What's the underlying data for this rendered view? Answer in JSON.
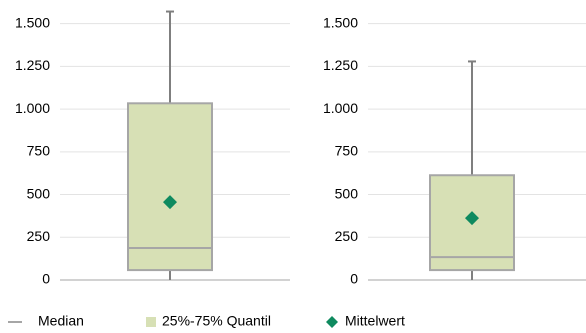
{
  "chart_data": [
    {
      "type": "box",
      "ylim": [
        0,
        1580
      ],
      "yticks": [
        0,
        250,
        500,
        750,
        {
          "value": 1000,
          "label": "1.000"
        },
        {
          "value": 1250,
          "label": "1.250"
        },
        {
          "value": 1500,
          "label": "1.500"
        }
      ],
      "grid": true,
      "min": 0,
      "q1": 58,
      "median": 187,
      "q3": 1034,
      "max": 1571,
      "mean": 456
    },
    {
      "type": "box",
      "ylim": [
        0,
        1580
      ],
      "yticks": [
        0,
        250,
        500,
        750,
        {
          "value": 1000,
          "label": "1.000"
        },
        {
          "value": 1250,
          "label": "1.250"
        },
        {
          "value": 1500,
          "label": "1.500"
        }
      ],
      "grid": true,
      "min": 0,
      "q1": 58,
      "median": 134,
      "q3": 613,
      "max": 1279,
      "mean": 362
    }
  ],
  "legend": [
    {
      "name": "Median",
      "color": "#a6a6a6"
    },
    {
      "name": "25%-75% Quantil",
      "color": "#d7e0b5"
    },
    {
      "name": "Mittelwert",
      "color": "#0e8a5f"
    }
  ]
}
